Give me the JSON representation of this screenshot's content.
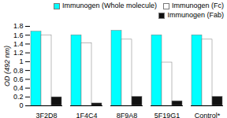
{
  "chart_data": {
    "type": "bar",
    "categories": [
      "3F2D8",
      "1F4C4",
      "8F9A8",
      "5F19G1",
      "Control*"
    ],
    "series": [
      {
        "name": "Immunogen (Whole molecule)",
        "color": "#00FFFF",
        "values": [
          1.68,
          1.6,
          1.7,
          1.6,
          1.6
        ]
      },
      {
        "name": "Immunogen (Fc)",
        "color": "#FFFFFF",
        "values": [
          1.6,
          1.42,
          1.5,
          0.98,
          1.5
        ]
      },
      {
        "name": "Immunogen (Fab)",
        "color": "#111111",
        "values": [
          0.195,
          0.055,
          0.205,
          0.105,
          0.205
        ]
      }
    ],
    "ylabel": "OD (492 nm)",
    "ylim": [
      0,
      1.8
    ],
    "yticks": [
      0,
      0.2,
      0.4,
      0.6,
      0.8,
      1,
      1.2,
      1.4,
      1.6,
      1.8
    ],
    "legend": "upper right"
  }
}
